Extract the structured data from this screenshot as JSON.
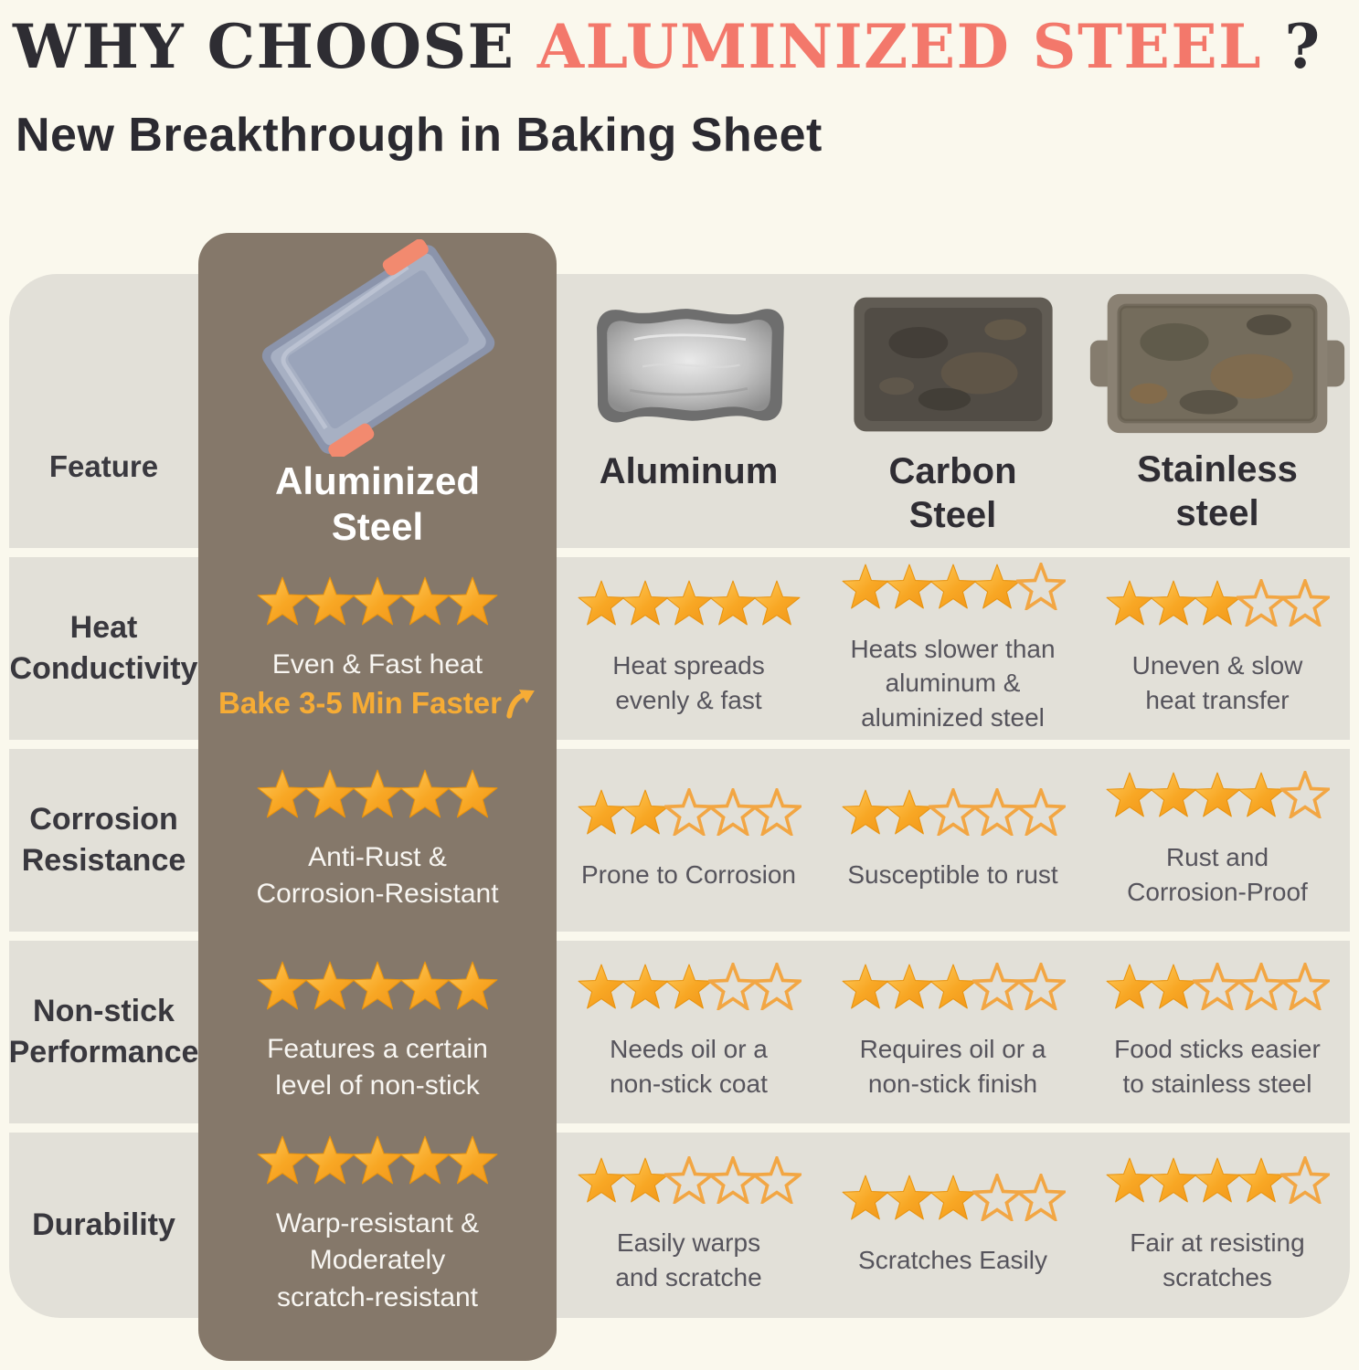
{
  "page": {
    "title_prefix": "WHY CHOOSE ",
    "title_highlight": "ALUMINIZED STEEL",
    "title_suffix": " ?",
    "subtitle": "New Breakthrough in Baking Sheet"
  },
  "colors": {
    "background": "#FAF8ED",
    "cell_background": "#E2E0D8",
    "highlight_column": "#85786A",
    "title_dark": "#2E2D33",
    "title_highlight": "#F3786B",
    "star_orange": "#F7A320",
    "star_outline": "#F2A643",
    "accent_orange": "#F6AC35",
    "body_text": "#56545C",
    "white_text": "#F8F6F2"
  },
  "table": {
    "feature_header": "Feature",
    "columns": [
      {
        "id": "aluminized-steel",
        "label": "Aluminized Steel",
        "label_lines": [
          "Aluminized",
          "Steel"
        ],
        "pan_icon": "aluminized-steel-pan",
        "highlight": true
      },
      {
        "id": "aluminum",
        "label": "Aluminum",
        "label_lines": [
          "Aluminum"
        ],
        "pan_icon": "aluminum-pan",
        "highlight": false
      },
      {
        "id": "carbon-steel",
        "label": "Carbon Steel",
        "label_lines": [
          "Carbon",
          "Steel"
        ],
        "pan_icon": "carbon-steel-pan",
        "highlight": false
      },
      {
        "id": "stainless-steel",
        "label": "Stainless steel",
        "label_lines": [
          "Stainless",
          "steel"
        ],
        "pan_icon": "stainless-steel-pan",
        "highlight": false
      }
    ],
    "rows": [
      {
        "id": "heat-conductivity",
        "feature_lines": [
          "Heat",
          "Conductivity"
        ],
        "cells": [
          {
            "stars": 5,
            "lines": [
              "Even & Fast heat"
            ],
            "accent": "Bake 3-5 Min Faster",
            "accent_arrow": "curved-up-arrow"
          },
          {
            "stars": 5,
            "lines": [
              "Heat spreads",
              "evenly & fast"
            ]
          },
          {
            "stars": 4,
            "lines": [
              "Heats slower than",
              "aluminum &",
              "aluminized steel"
            ]
          },
          {
            "stars": 3,
            "lines": [
              "Uneven & slow",
              "heat transfer"
            ]
          }
        ]
      },
      {
        "id": "corrosion-resistance",
        "feature_lines": [
          "Corrosion",
          "Resistance"
        ],
        "cells": [
          {
            "stars": 5,
            "lines": [
              "Anti-Rust &",
              "Corrosion-Resistant"
            ]
          },
          {
            "stars": 2,
            "lines": [
              "Prone to Corrosion"
            ]
          },
          {
            "stars": 2,
            "lines": [
              "Susceptible to rust"
            ]
          },
          {
            "stars": 4,
            "lines": [
              "Rust and",
              "Corrosion-Proof"
            ]
          }
        ]
      },
      {
        "id": "non-stick-performance",
        "feature_lines": [
          "Non-stick",
          "Performance"
        ],
        "cells": [
          {
            "stars": 5,
            "lines": [
              "Features a certain",
              "level of non-stick"
            ]
          },
          {
            "stars": 3,
            "lines": [
              "Needs oil or a",
              "non-stick coat"
            ]
          },
          {
            "stars": 3,
            "lines": [
              "Requires oil or a",
              "non-stick finish"
            ]
          },
          {
            "stars": 2,
            "lines": [
              "Food sticks easier",
              "to stainless steel"
            ]
          }
        ]
      },
      {
        "id": "durability",
        "feature_lines": [
          "Durability"
        ],
        "cells": [
          {
            "stars": 5,
            "lines": [
              "Warp-resistant & Moderately",
              "scratch-resistant"
            ]
          },
          {
            "stars": 2,
            "lines": [
              "Easily warps",
              "and scratche"
            ]
          },
          {
            "stars": 3,
            "lines": [
              "Scratches Easily"
            ]
          },
          {
            "stars": 4,
            "lines": [
              "Fair at resisting",
              "scratches"
            ]
          }
        ]
      }
    ]
  },
  "chart_data": {
    "type": "table",
    "title": "WHY CHOOSE ALUMINIZED STEEL ?",
    "subtitle": "New Breakthrough in Baking Sheet",
    "columns": [
      "Aluminized Steel",
      "Aluminum",
      "Carbon Steel",
      "Stainless steel"
    ],
    "row_labels": [
      "Heat Conductivity",
      "Corrosion Resistance",
      "Non-stick Performance",
      "Durability"
    ],
    "star_ratings_out_of_5": {
      "Heat Conductivity": [
        5,
        5,
        4,
        3
      ],
      "Corrosion Resistance": [
        5,
        2,
        2,
        4
      ],
      "Non-stick Performance": [
        5,
        3,
        3,
        2
      ],
      "Durability": [
        5,
        2,
        3,
        4
      ]
    },
    "cell_notes": {
      "Heat Conductivity": [
        "Even & Fast heat — Bake 3-5 Min Faster",
        "Heat spreads evenly & fast",
        "Heats slower than aluminum & aluminized steel",
        "Uneven & slow heat transfer"
      ],
      "Corrosion Resistance": [
        "Anti-Rust & Corrosion-Resistant",
        "Prone to Corrosion",
        "Susceptible to rust",
        "Rust and Corrosion-Proof"
      ],
      "Non-stick Performance": [
        "Features a certain level of non-stick",
        "Needs oil or a non-stick coat",
        "Requires oil or a non-stick finish",
        "Food sticks easier to stainless steel"
      ],
      "Durability": [
        "Warp-resistant & Moderately scratch-resistant",
        "Easily warps and scratche",
        "Scratches Easily",
        "Fair at resisting scratches"
      ]
    }
  }
}
